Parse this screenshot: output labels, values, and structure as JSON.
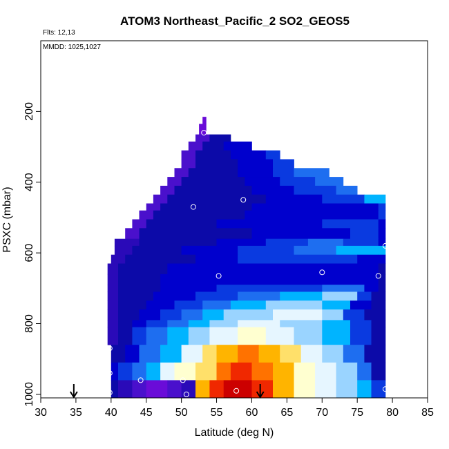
{
  "chart_data": {
    "type": "heatmap",
    "title": "ATOM3 Northeast_Pacific_2 SO2_GEOS5",
    "annotations": [
      "Flts: 12,13",
      "MMDD: 1025,1027"
    ],
    "xlabel": "Latitude (deg N)",
    "ylabel": "PSXC (mbar)",
    "xlim": [
      30,
      85
    ],
    "ylim": [
      1010,
      0
    ],
    "y_reversed": true,
    "x_ticks": [
      30,
      35,
      40,
      45,
      50,
      55,
      60,
      65,
      70,
      75,
      80,
      85
    ],
    "y_ticks": [
      200,
      400,
      600,
      800,
      1000
    ],
    "grid": false,
    "legend": "none",
    "colors": {
      "c0": "#6a0cd8",
      "c1": "#4a10cc",
      "c2": "#2a0ab8",
      "c3": "#0c0aa8",
      "c4": "#0000cd",
      "c5": "#0a3ae0",
      "c6": "#1e6ef0",
      "c7": "#00b4ff",
      "c8": "#9ad4ff",
      "c9": "#e6f6ff",
      "c10": "#ffffd0",
      "c11": "#ffe06a",
      "c12": "#ffb400",
      "c13": "#ff7200",
      "c14": "#f02800",
      "c15": "#cc0000"
    },
    "rows": [
      {
        "p_top": 215,
        "p_bottom": 235,
        "segments": [
          [
            53.0,
            53.5,
            0
          ]
        ]
      },
      {
        "p_top": 235,
        "p_bottom": 265,
        "segments": [
          [
            52.5,
            53.5,
            0
          ]
        ]
      },
      {
        "p_top": 265,
        "p_bottom": 285,
        "segments": [
          [
            52,
            54,
            1
          ],
          [
            54,
            57,
            3
          ]
        ]
      },
      {
        "p_top": 285,
        "p_bottom": 310,
        "segments": [
          [
            51,
            53,
            1
          ],
          [
            53,
            56,
            3
          ],
          [
            56,
            60,
            4
          ]
        ]
      },
      {
        "p_top": 310,
        "p_bottom": 335,
        "segments": [
          [
            50,
            52,
            1
          ],
          [
            52,
            57,
            3
          ],
          [
            57,
            62,
            4
          ],
          [
            62,
            64,
            5
          ]
        ]
      },
      {
        "p_top": 335,
        "p_bottom": 360,
        "segments": [
          [
            50,
            52,
            1
          ],
          [
            52,
            58,
            3
          ],
          [
            58,
            63,
            4
          ],
          [
            63,
            66,
            5
          ]
        ]
      },
      {
        "p_top": 360,
        "p_bottom": 385,
        "segments": [
          [
            49,
            51,
            1
          ],
          [
            51,
            58,
            3
          ],
          [
            58,
            63,
            4
          ],
          [
            63,
            66,
            5
          ],
          [
            66,
            71,
            6
          ]
        ]
      },
      {
        "p_top": 385,
        "p_bottom": 410,
        "segments": [
          [
            48,
            50,
            1
          ],
          [
            50,
            59,
            3
          ],
          [
            59,
            64,
            4
          ],
          [
            64,
            69,
            5
          ],
          [
            69,
            73,
            6
          ]
        ]
      },
      {
        "p_top": 410,
        "p_bottom": 435,
        "segments": [
          [
            47,
            49,
            1
          ],
          [
            49,
            60,
            3
          ],
          [
            60,
            66,
            4
          ],
          [
            66,
            72,
            5
          ],
          [
            72,
            75,
            6
          ]
        ]
      },
      {
        "p_top": 435,
        "p_bottom": 460,
        "segments": [
          [
            46,
            48,
            1
          ],
          [
            48,
            62,
            3
          ],
          [
            62,
            70,
            4
          ],
          [
            70,
            76,
            5
          ],
          [
            76,
            79,
            7
          ]
        ]
      },
      {
        "p_top": 460,
        "p_bottom": 480,
        "segments": [
          [
            45,
            47,
            1
          ],
          [
            47,
            60,
            3
          ],
          [
            60,
            78,
            4
          ],
          [
            78,
            79,
            5
          ]
        ]
      },
      {
        "p_top": 480,
        "p_bottom": 505,
        "segments": [
          [
            44,
            46,
            1
          ],
          [
            46,
            59,
            3
          ],
          [
            59,
            78,
            4
          ],
          [
            78,
            79,
            5
          ]
        ]
      },
      {
        "p_top": 505,
        "p_bottom": 530,
        "segments": [
          [
            43,
            45,
            1
          ],
          [
            45,
            55,
            3
          ],
          [
            55,
            70,
            4
          ],
          [
            70,
            78,
            5
          ],
          [
            78,
            79,
            4
          ]
        ]
      },
      {
        "p_top": 530,
        "p_bottom": 560,
        "segments": [
          [
            42,
            44,
            1
          ],
          [
            44,
            60,
            3
          ],
          [
            60,
            74,
            4
          ],
          [
            74,
            78,
            5
          ],
          [
            78,
            79,
            4
          ]
        ]
      },
      {
        "p_top": 560,
        "p_bottom": 580,
        "segments": [
          [
            40.5,
            44,
            2
          ],
          [
            44,
            55,
            3
          ],
          [
            55,
            62,
            4
          ],
          [
            62,
            68,
            5
          ],
          [
            68,
            73,
            6
          ],
          [
            73,
            78,
            5
          ],
          [
            78,
            79,
            4
          ]
        ]
      },
      {
        "p_top": 580,
        "p_bottom": 605,
        "segments": [
          [
            40.5,
            43,
            2
          ],
          [
            43,
            50,
            3
          ],
          [
            50,
            58,
            4
          ],
          [
            58,
            66,
            5
          ],
          [
            66,
            72,
            6
          ],
          [
            72,
            77,
            7
          ],
          [
            77,
            79,
            7
          ]
        ]
      },
      {
        "p_top": 605,
        "p_bottom": 630,
        "segments": [
          [
            40,
            42,
            2
          ],
          [
            42,
            52,
            3
          ],
          [
            52,
            58,
            4
          ],
          [
            58,
            66,
            5
          ],
          [
            66,
            75,
            5
          ],
          [
            75,
            78,
            4
          ],
          [
            78,
            79,
            4
          ]
        ]
      },
      {
        "p_top": 630,
        "p_bottom": 660,
        "segments": [
          [
            39.5,
            41,
            2
          ],
          [
            41,
            48,
            3
          ],
          [
            48,
            54,
            4
          ],
          [
            54,
            60,
            4
          ],
          [
            60,
            70,
            4
          ],
          [
            70,
            78,
            4
          ],
          [
            78,
            79,
            3
          ]
        ]
      },
      {
        "p_top": 660,
        "p_bottom": 690,
        "segments": [
          [
            39.5,
            41,
            2
          ],
          [
            41,
            47,
            3
          ],
          [
            47,
            54,
            4
          ],
          [
            54,
            60,
            4
          ],
          [
            60,
            73,
            4
          ],
          [
            73,
            78,
            4
          ],
          [
            78,
            79,
            3
          ]
        ]
      },
      {
        "p_top": 690,
        "p_bottom": 710,
        "segments": [
          [
            39.5,
            41,
            2
          ],
          [
            41,
            47,
            3
          ],
          [
            47,
            55,
            4
          ],
          [
            55,
            62,
            5
          ],
          [
            62,
            70,
            5
          ],
          [
            70,
            76,
            6
          ],
          [
            76,
            78,
            4
          ],
          [
            78,
            79,
            3
          ]
        ]
      },
      {
        "p_top": 710,
        "p_bottom": 735,
        "segments": [
          [
            39.5,
            41,
            2
          ],
          [
            41,
            46,
            3
          ],
          [
            46,
            52,
            4
          ],
          [
            52,
            58,
            5
          ],
          [
            58,
            64,
            6
          ],
          [
            64,
            70,
            7
          ],
          [
            70,
            75,
            8
          ],
          [
            75,
            77,
            5
          ],
          [
            77,
            79,
            3
          ]
        ]
      },
      {
        "p_top": 735,
        "p_bottom": 760,
        "segments": [
          [
            39.5,
            41,
            2
          ],
          [
            41,
            45,
            3
          ],
          [
            45,
            49,
            4
          ],
          [
            49,
            53,
            5
          ],
          [
            53,
            57,
            6
          ],
          [
            57,
            62,
            7
          ],
          [
            62,
            70,
            8
          ],
          [
            70,
            74,
            7
          ],
          [
            74,
            77,
            4
          ],
          [
            77,
            79,
            3
          ]
        ]
      },
      {
        "p_top": 760,
        "p_bottom": 790,
        "segments": [
          [
            39.5,
            41,
            2
          ],
          [
            41,
            44,
            3
          ],
          [
            44,
            47,
            4
          ],
          [
            47,
            50,
            5
          ],
          [
            50,
            53,
            6
          ],
          [
            53,
            56,
            7
          ],
          [
            56,
            63,
            8
          ],
          [
            63,
            70,
            9
          ],
          [
            70,
            73,
            8
          ],
          [
            73,
            76,
            5
          ],
          [
            76,
            79,
            3
          ]
        ]
      },
      {
        "p_top": 790,
        "p_bottom": 810,
        "segments": [
          [
            39.5,
            41,
            2
          ],
          [
            41,
            43,
            3
          ],
          [
            43,
            45,
            4
          ],
          [
            45,
            48,
            5
          ],
          [
            48,
            51,
            6
          ],
          [
            51,
            54,
            7
          ],
          [
            54,
            58,
            8
          ],
          [
            58,
            64,
            9
          ],
          [
            64,
            70,
            8
          ],
          [
            70,
            74,
            7
          ],
          [
            74,
            77,
            5
          ],
          [
            77,
            79,
            3
          ]
        ]
      },
      {
        "p_top": 810,
        "p_bottom": 860,
        "segments": [
          [
            39.5,
            41,
            2
          ],
          [
            41,
            43,
            3
          ],
          [
            43,
            45,
            5
          ],
          [
            45,
            48,
            6
          ],
          [
            48,
            51,
            7
          ],
          [
            51,
            54,
            8
          ],
          [
            54,
            58,
            9
          ],
          [
            58,
            62,
            10
          ],
          [
            62,
            66,
            9
          ],
          [
            66,
            70,
            8
          ],
          [
            70,
            74,
            7
          ],
          [
            74,
            77,
            5
          ],
          [
            77,
            79,
            3
          ]
        ]
      },
      {
        "p_top": 860,
        "p_bottom": 910,
        "segments": [
          [
            40,
            42,
            3
          ],
          [
            42,
            44,
            4
          ],
          [
            44,
            47,
            6
          ],
          [
            47,
            50,
            7
          ],
          [
            50,
            53,
            9
          ],
          [
            53,
            55,
            11
          ],
          [
            55,
            58,
            12
          ],
          [
            58,
            61,
            13
          ],
          [
            61,
            64,
            12
          ],
          [
            64,
            67,
            11
          ],
          [
            67,
            70,
            9
          ],
          [
            70,
            73,
            8
          ],
          [
            73,
            76,
            6
          ],
          [
            76,
            79,
            3
          ]
        ]
      },
      {
        "p_top": 910,
        "p_bottom": 960,
        "segments": [
          [
            40,
            41,
            4
          ],
          [
            41,
            43,
            5
          ],
          [
            43,
            45,
            6
          ],
          [
            45,
            47,
            7
          ],
          [
            47,
            49,
            9
          ],
          [
            49,
            52,
            10
          ],
          [
            52,
            55,
            11
          ],
          [
            55,
            57,
            13
          ],
          [
            57,
            60,
            14
          ],
          [
            60,
            63,
            13
          ],
          [
            63,
            66,
            12
          ],
          [
            66,
            69,
            10
          ],
          [
            69,
            72,
            9
          ],
          [
            72,
            75,
            8
          ],
          [
            75,
            77,
            6
          ],
          [
            77,
            79,
            3
          ]
        ]
      },
      {
        "p_top": 960,
        "p_bottom": 1010,
        "segments": [
          [
            40,
            41,
            3
          ],
          [
            41,
            43,
            2
          ],
          [
            43,
            45,
            1
          ],
          [
            45,
            48,
            0
          ],
          [
            48,
            50,
            1
          ],
          [
            50,
            52,
            2
          ],
          [
            52,
            54,
            12
          ],
          [
            54,
            56,
            14
          ],
          [
            56,
            60,
            15
          ],
          [
            60,
            63,
            14
          ],
          [
            63,
            66,
            12
          ],
          [
            66,
            69,
            10
          ],
          [
            69,
            72,
            9
          ],
          [
            72,
            75,
            8
          ],
          [
            75,
            77,
            7
          ],
          [
            77,
            79,
            5
          ]
        ]
      }
    ],
    "points": [
      {
        "lat": 53.2,
        "p": 260
      },
      {
        "lat": 51.7,
        "p": 470
      },
      {
        "lat": 58.8,
        "p": 450
      },
      {
        "lat": 55.3,
        "p": 665
      },
      {
        "lat": 70.0,
        "p": 655
      },
      {
        "lat": 78.0,
        "p": 665
      },
      {
        "lat": 79.0,
        "p": 580
      },
      {
        "lat": 39.8,
        "p": 870
      },
      {
        "lat": 39.8,
        "p": 940
      },
      {
        "lat": 39.8,
        "p": 995
      },
      {
        "lat": 44.2,
        "p": 960
      },
      {
        "lat": 50.2,
        "p": 960
      },
      {
        "lat": 50.7,
        "p": 1000
      },
      {
        "lat": 57.8,
        "p": 990
      },
      {
        "lat": 79.0,
        "p": 985
      }
    ],
    "arrows": [
      34.7,
      61.2
    ]
  }
}
